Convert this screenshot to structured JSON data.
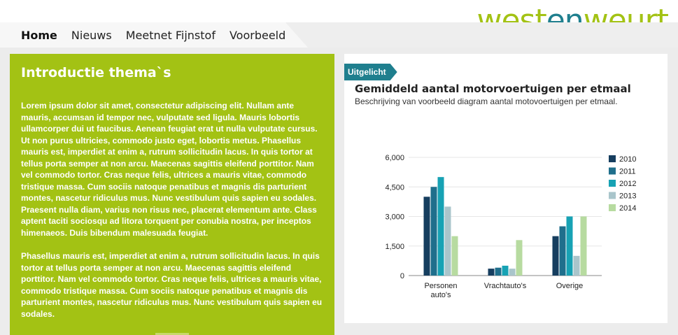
{
  "logo": {
    "part1": "west",
    "part2": "en",
    "part3": "weurt"
  },
  "nav": {
    "items": [
      "Home",
      "Nieuws",
      "Meetnet Fijnstof",
      "Voorbeeld"
    ]
  },
  "intro": {
    "title": "Introductie thema`s",
    "paragraph1": "Lorem ipsum dolor sit amet, consectetur adipiscing elit. Nullam ante mauris, accumsan id tempor nec, vulputate sed ligula. Mauris lobortis ullamcorper dui ut faucibus. Aenean feugiat erat ut nulla vulputate cursus. Ut non purus ultricies, commodo justo eget, lobortis metus. Phasellus mauris est, imperdiet at enim a, rutrum sollicitudin lacus. In quis tortor at tellus porta semper at non arcu. Maecenas sagittis eleifend porttitor. Nam vel commodo tortor. Cras neque felis, ultrices a mauris vitae, commodo tristique massa. Cum sociis natoque penatibus et magnis dis parturient montes, nascetur ridiculus mus. Nunc vestibulum quis sapien eu sodales. Praesent nulla diam, varius non risus nec, placerat elementum ante. Class aptent taciti sociosqu ad litora torquent per conubia nostra, per inceptos himenaeos. Duis bibendum malesuada feugiat.",
    "paragraph2": "Phasellus mauris est, imperdiet at enim a, rutrum sollicitudin lacus. In quis tortor at tellus porta semper at non arcu. Maecenas sagittis eleifend porttitor. Nam vel commodo tortor. Cras neque felis, ultrices a mauris vitae, commodo tristique massa. Cum sociis natoque penatibus et magnis dis parturient montes, nascetur ridiculus mus. Nunc vestibulum quis sapien eu sodales."
  },
  "feature": {
    "badge": "Uitgelicht",
    "title": "Gemiddeld aantal motorvoertuigen per etmaal",
    "subtitle": "Beschrijving van voorbeeld diagram aantal motovoertuigen per etmaal."
  },
  "chart_data": {
    "type": "bar",
    "categories": [
      [
        "Personen",
        "auto's"
      ],
      [
        "Vrachtauto's"
      ],
      [
        "Overige"
      ]
    ],
    "series": [
      {
        "name": "2010",
        "color": "#163e5f",
        "values": [
          4000,
          350,
          2000
        ]
      },
      {
        "name": "2011",
        "color": "#1f6f8c",
        "values": [
          4500,
          400,
          2500
        ]
      },
      {
        "name": "2012",
        "color": "#17a2b4",
        "values": [
          5000,
          500,
          3000
        ]
      },
      {
        "name": "2013",
        "color": "#a9c5cb",
        "values": [
          3500,
          350,
          1000
        ]
      },
      {
        "name": "2014",
        "color": "#b7dba0",
        "values": [
          2000,
          1800,
          3000
        ]
      }
    ],
    "yticks": [
      "0",
      "1,500",
      "3,000",
      "4,500",
      "6,000"
    ],
    "ylim": [
      0,
      6000
    ],
    "grid": true,
    "legend": "right"
  },
  "colors": {
    "green": "#a3c214",
    "teal": "#1f7f8e"
  }
}
